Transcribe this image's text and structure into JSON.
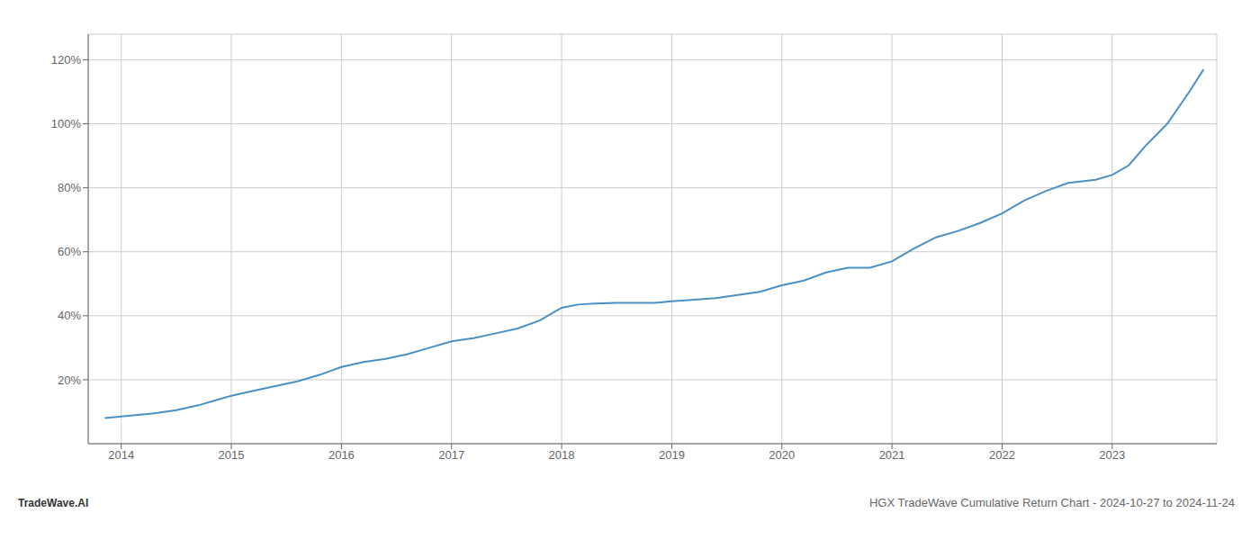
{
  "chart_data": {
    "type": "line",
    "title": "HGX TradeWave Cumulative Return Chart - 2024-10-27 to 2024-11-24",
    "annotations": [
      "TradeWave.AI"
    ],
    "color": "#4a90c4",
    "grid": true,
    "x": [
      2013.85,
      2014.0,
      2014.15,
      2014.3,
      2014.5,
      2014.7,
      2014.85,
      2015.0,
      2015.2,
      2015.4,
      2015.6,
      2015.8,
      2016.0,
      2016.2,
      2016.4,
      2016.6,
      2016.8,
      2017.0,
      2017.2,
      2017.4,
      2017.6,
      2017.8,
      2018.0,
      2018.15,
      2018.3,
      2018.5,
      2018.7,
      2018.85,
      2019.0,
      2019.2,
      2019.4,
      2019.6,
      2019.8,
      2020.0,
      2020.2,
      2020.4,
      2020.6,
      2020.8,
      2021.0,
      2021.2,
      2021.4,
      2021.6,
      2021.8,
      2022.0,
      2022.2,
      2022.4,
      2022.6,
      2022.85,
      2023.0,
      2023.15,
      2023.3,
      2023.5,
      2023.7,
      2023.83
    ],
    "values": [
      8,
      8.5,
      9.0,
      9.5,
      10.5,
      12.0,
      13.5,
      15.0,
      16.5,
      18.0,
      19.5,
      21.5,
      24.0,
      25.5,
      26.5,
      28.0,
      30.0,
      32.0,
      33.0,
      34.5,
      36.0,
      38.5,
      42.5,
      43.5,
      43.8,
      44.0,
      44.0,
      44.0,
      44.5,
      45.0,
      45.5,
      46.5,
      47.5,
      49.5,
      51.0,
      53.5,
      55.0,
      55.0,
      57.0,
      61.0,
      64.5,
      66.5,
      69.0,
      72.0,
      76.0,
      79.0,
      81.5,
      82.5,
      84.0,
      87.0,
      93.0,
      100.0,
      110.0,
      117.0
    ],
    "xlim": [
      2013.7,
      2023.95
    ],
    "ylim": [
      0,
      128
    ],
    "xticks": [
      2014,
      2015,
      2016,
      2017,
      2018,
      2019,
      2020,
      2021,
      2022,
      2023
    ],
    "yticks": [
      {
        "value": 20,
        "label": "20%"
      },
      {
        "value": 40,
        "label": "40%"
      },
      {
        "value": 60,
        "label": "60%"
      },
      {
        "value": 80,
        "label": "80%"
      },
      {
        "value": 100,
        "label": "100%"
      },
      {
        "value": 120,
        "label": "120%"
      }
    ]
  }
}
